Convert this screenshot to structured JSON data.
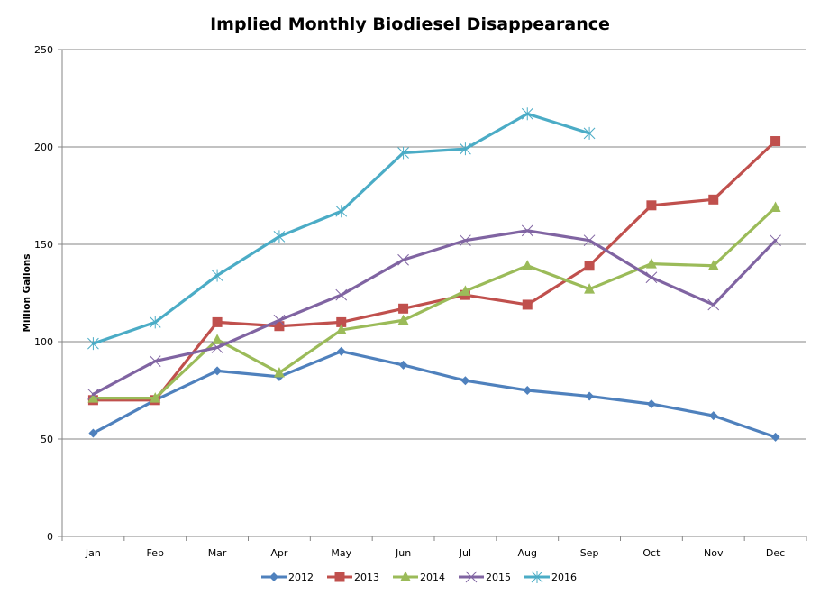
{
  "chart_data": {
    "type": "line",
    "title": "Implied Monthly Biodiesel Disappearance",
    "xlabel": "",
    "ylabel": "Million Gallons",
    "ylim": [
      0,
      250
    ],
    "yticks": [
      0,
      50,
      100,
      150,
      200,
      250
    ],
    "grid": true,
    "legend_position": "bottom",
    "categories": [
      "Jan",
      "Feb",
      "Mar",
      "Apr",
      "May",
      "Jun",
      "Jul",
      "Aug",
      "Sep",
      "Oct",
      "Nov",
      "Dec"
    ],
    "series": [
      {
        "name": "2012",
        "color": "#4F81BD",
        "marker": "diamond",
        "values": [
          53,
          70,
          85,
          82,
          95,
          88,
          80,
          75,
          72,
          68,
          62,
          51
        ]
      },
      {
        "name": "2013",
        "color": "#C0504D",
        "marker": "square",
        "values": [
          70,
          70,
          110,
          108,
          110,
          117,
          124,
          119,
          139,
          170,
          173,
          203
        ]
      },
      {
        "name": "2014",
        "color": "#9BBB59",
        "marker": "triangle",
        "values": [
          71,
          71,
          101,
          84,
          106,
          111,
          126,
          139,
          127,
          140,
          139,
          169
        ]
      },
      {
        "name": "2015",
        "color": "#8064A2",
        "marker": "x",
        "values": [
          73,
          90,
          97,
          111,
          124,
          142,
          152,
          157,
          152,
          133,
          119,
          152
        ]
      },
      {
        "name": "2016",
        "color": "#4BACC6",
        "marker": "star",
        "values": [
          99,
          110,
          134,
          154,
          167,
          197,
          199,
          217,
          207,
          null,
          null,
          null
        ]
      }
    ]
  }
}
